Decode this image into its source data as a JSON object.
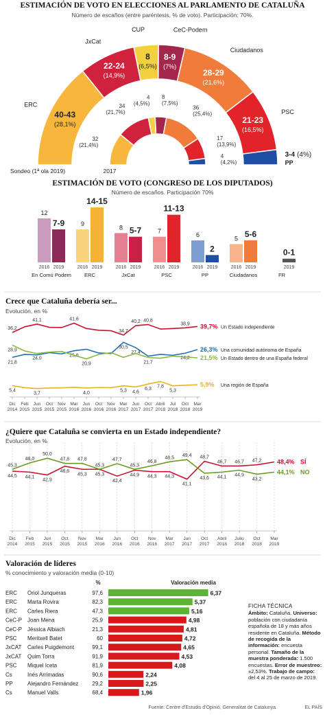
{
  "chart_data": [
    {
      "type": "donut",
      "title": "ESTIMACIÓN DE VOTO EN ELECCIONES AL PARLAMENTO DE CATALUÑA",
      "subtitle": "Número de escaños (entre paréntesis, % de voto). Participación: 70%.",
      "categories": [
        "ERC",
        "JxCat",
        "CUP",
        "CeC-Podem",
        "Ciudadanos",
        "PSC",
        "PP"
      ],
      "colors": [
        "#f6b73c",
        "#d0223d",
        "#f3d03e",
        "#a3264b",
        "#f07b3a",
        "#e2232a",
        "#1f4fa3"
      ],
      "series": [
        {
          "name": "Sondeo (1ª ola 2019)",
          "seats": [
            "40-43",
            "22-24",
            "8",
            "8-9",
            "28-29",
            "21-23",
            "3-4"
          ],
          "values": [
            28.1,
            14.9,
            6.5,
            7,
            21.6,
            16.5,
            4
          ],
          "value_labels": [
            "(28,1%)",
            "(14,9%)",
            "(6,5%)",
            "(7%)",
            "(21,6%)",
            "(16,5%)",
            "(4%)"
          ]
        },
        {
          "name": "2017",
          "seats": [
            "32",
            "34",
            "4",
            "8",
            "36",
            "17",
            "4"
          ],
          "values": [
            21.4,
            21.7,
            4.5,
            7.5,
            25.4,
            13.9,
            4.2
          ],
          "value_labels": [
            "(21,4%)",
            "(21,7%)",
            "(4,5%)",
            "(7,5%)",
            "(25,4%)",
            "(13,9%)",
            "(4,2%)"
          ]
        }
      ]
    },
    {
      "type": "bar",
      "title": "ESTIMACIÓN DE VOTO (CONGRESO DE LOS DIPUTADOS)",
      "subtitle": "Número de escaños. Participación 70%",
      "categories": [
        "En Comú Podem",
        "ERC",
        "JxCat",
        "PSC",
        "PP",
        "Ciudadanos",
        "FR"
      ],
      "ylim": [
        0,
        15
      ],
      "series": [
        {
          "name": "2016",
          "colors": [
            "#c99bbd",
            "#f8d27c",
            "#e47f92",
            "#f08d8d",
            "#7f9fd3",
            "#f8b58c",
            "#999999"
          ],
          "values": [
            12,
            9,
            8,
            7,
            6,
            5,
            null
          ]
        },
        {
          "name": "2019",
          "colors": [
            "#8e2a5a",
            "#f5b335",
            "#c92146",
            "#e2232a",
            "#1f4fa3",
            "#f07b3a",
            "#555555"
          ],
          "values": [
            [
              7,
              9
            ],
            [
              14,
              15
            ],
            [
              5,
              7
            ],
            [
              11,
              13
            ],
            [
              2,
              2
            ],
            [
              5,
              6
            ],
            [
              0,
              1
            ]
          ],
          "value_labels": [
            "7-9",
            "14-15",
            "5-7",
            "11-13",
            "2",
            "5-6",
            "0-1"
          ]
        }
      ]
    },
    {
      "type": "line",
      "title": "Crece que Cataluña debería ser...",
      "subtitle": "Evolución, en %",
      "categories": [
        [
          "Dic",
          "2014"
        ],
        [
          "Feb",
          "2015"
        ],
        [
          "Jun",
          "2015"
        ],
        [
          "Oct",
          "2015"
        ],
        [
          "Nov",
          "2015"
        ],
        [
          "Mar",
          "2016"
        ],
        [
          "Jun",
          "2016"
        ],
        [
          "Oct",
          "2016"
        ],
        [
          "Nov",
          "2016"
        ],
        [
          "Mar",
          "2017"
        ],
        [
          "Jun",
          "2017"
        ],
        [
          "Oct",
          "2017"
        ],
        [
          "Abril",
          "2018"
        ],
        [
          "Jul",
          "2018"
        ],
        [
          "Oct",
          "2018"
        ],
        [
          "Mar",
          "2019"
        ]
      ],
      "ylim": [
        0,
        45
      ],
      "grid": false,
      "series": [
        {
          "name": "Un Estado independiente",
          "color": "#c8102e",
          "values": [
            36.2,
            39.5,
            41.1,
            39.2,
            39.1,
            41.6,
            38.5,
            37.5,
            37.2,
            34.7,
            40.2,
            40.8,
            38.2,
            38.5,
            38.9,
            39.7
          ],
          "value_labels": [
            "36,2",
            null,
            "41,1",
            null,
            null,
            "41,6",
            null,
            null,
            null,
            "34,7",
            "40,2",
            "40,8",
            null,
            null,
            "38,9",
            "39,7%"
          ]
        },
        {
          "name": "Una comunidad autónoma de España",
          "color": "#1f6fb2",
          "values": [
            21.8,
            23.5,
            23.2,
            24.5,
            23.8,
            25.6,
            26.5,
            24.3,
            24.0,
            30.5,
            27.4,
            22.5,
            23.5,
            23.0,
            24.2,
            26.3
          ],
          "value_labels": [
            "21,8",
            null,
            null,
            null,
            null,
            "25,6",
            null,
            null,
            null,
            "30,5",
            "27,4",
            null,
            null,
            null,
            "24,2",
            "26,3%"
          ]
        },
        {
          "name": "Un Estado dentro de una España federal",
          "color": "#8cb83a",
          "values": [
            28.9,
            25.5,
            24.0,
            24.8,
            25.2,
            23.0,
            20.9,
            23.5,
            24.5,
            21.8,
            24.0,
            21.7,
            21.3,
            22.5,
            22.0,
            21.5
          ],
          "value_labels": [
            "28,9",
            null,
            "24,0",
            null,
            null,
            null,
            "20,9",
            null,
            null,
            null,
            null,
            "21,7",
            null,
            null,
            null,
            "21,5%"
          ]
        },
        {
          "name": "Una región de España",
          "color": "#e8b31e",
          "values": [
            5.4,
            4.2,
            3.7,
            4.0,
            4.1,
            4.4,
            4.0,
            4.3,
            4.2,
            5.3,
            4.6,
            6.3,
            7.8,
            5.3,
            5.6,
            5.9
          ],
          "value_labels": [
            "5,4",
            null,
            "3,7",
            null,
            null,
            null,
            "4,0",
            null,
            null,
            "5,3",
            "4,6",
            "6,3",
            "7,8",
            "5,3",
            null,
            "5,9%"
          ]
        }
      ]
    },
    {
      "type": "line",
      "title": "¿Quiere que Cataluña se convierta en un Estado independiente?",
      "subtitle": "Evolución, en %",
      "categories": [
        [
          "Dic",
          "2014"
        ],
        [
          "Feb",
          "2015"
        ],
        [
          "Jun",
          "2015"
        ],
        [
          "Oct",
          "2015"
        ],
        [
          "Nov",
          "2015"
        ],
        [
          "Mar",
          "2016"
        ],
        [
          "Jun",
          "2016"
        ],
        [
          "Oct",
          "2016"
        ],
        [
          "Nov",
          "2016"
        ],
        [
          "Mar",
          "2017"
        ],
        [
          "Jun",
          "2017"
        ],
        [
          "Oct",
          "2017"
        ],
        [
          "Abril",
          "2018"
        ],
        [
          "Julio",
          "2018"
        ],
        [
          "Oct",
          "2018"
        ],
        [
          "Mar",
          "2019"
        ]
      ],
      "ylim": [
        20,
        55
      ],
      "grid": true,
      "series": [
        {
          "name": "SÍ",
          "color": "#c8102e",
          "values": [
            44.5,
            44.1,
            42.9,
            46.6,
            45.3,
            45.3,
            42.4,
            44.9,
            44.3,
            44.3,
            41.1,
            48.7,
            46.7,
            46.7,
            47.2,
            48.4
          ],
          "value_labels": [
            "44,5",
            "44,1",
            "42,9",
            "46,6",
            "45,3",
            "45,3",
            "42,4",
            "44,9",
            "44,3",
            "44,3",
            "41,1",
            "48,7",
            "46,7",
            "46,7",
            "47,2",
            "48,4%"
          ]
        },
        {
          "name": "NO",
          "color": "#6a9a1f",
          "values": [
            45.3,
            48.0,
            50.0,
            47.8,
            47.8,
            45.3,
            47.7,
            45.3,
            46.8,
            48.5,
            49.4,
            43.6,
            44.1,
            44.9,
            43.2,
            44.1
          ],
          "value_labels": [
            "45,3",
            "48,0",
            "50,0",
            "47,8",
            "47,8",
            "45,3",
            "47,7",
            "45,3",
            "46,8",
            "48,5",
            "49,4",
            "43,6",
            "44,1",
            "44,9",
            "43,2",
            "44,1%"
          ]
        }
      ]
    },
    {
      "type": "hbar",
      "title": "Valoración de líderes",
      "subtitle": "% conocimiento y valoración media (0-10)",
      "knowledge_header": "%",
      "value_header": "Valoración media",
      "parties": [
        "ERC",
        "ERC",
        "ERC",
        "CeC-P",
        "CeC-P",
        "PSC",
        "JxCAT",
        "JxCAT",
        "PSC",
        "Cs",
        "PP",
        "Cs"
      ],
      "categories": [
        "Oriol Junqueras",
        "Marta Rovira",
        "Carles Riera",
        "Joan Mena",
        "Jéssica Albiach",
        "Meritxell Batet",
        "Carles Puigdemont",
        "Quim Torra",
        "Miquel Iceta",
        "Inés Arrimadas",
        "Alejandro Fernández",
        "Manuel Valls"
      ],
      "knowledge": [
        "97,6",
        "82,3",
        "47,3",
        "25,9",
        "21,3",
        "60",
        "99,1",
        "91,9",
        "81,9",
        "90,6",
        "29,2",
        "68,4"
      ],
      "values": [
        6.37,
        5.37,
        5.16,
        4.98,
        4.81,
        4.72,
        4.65,
        4.53,
        4.08,
        2.24,
        2.25,
        1.96
      ],
      "value_labels": [
        "6,37",
        "5,37",
        "5,16",
        "4,98",
        "4,81",
        "4,72",
        "4,65",
        "4,53",
        "4,08",
        "2,24",
        "2,25",
        "1,96"
      ],
      "colors": [
        "#5bb432",
        "#5bb432",
        "#5bb432",
        "#d7191c",
        "#d7191c",
        "#d7191c",
        "#d7191c",
        "#d7191c",
        "#d7191c",
        "#d7191c",
        "#d7191c",
        "#d7191c"
      ],
      "xlim": [
        0,
        7
      ]
    }
  ],
  "fact_sheet": {
    "title": "FICHA TÉCNICA",
    "items": [
      {
        "label": "Ámbito:",
        "text": "Cataluña."
      },
      {
        "label": "Universo:",
        "text": "población con ciudadanía española de 18 y más años residente en Cataluña."
      },
      {
        "label": "Método de recogida de la información:",
        "text": "encuesta personal."
      },
      {
        "label": "Tamaño de la muestra ponderada:",
        "text": "1.500 encuestas."
      },
      {
        "label": "Error de muestreo:",
        "text": "±2,53%."
      },
      {
        "label": "Trabajo de campo:",
        "text": "del 4 al 25 de marzo de 2019."
      }
    ]
  },
  "source": "Fuente: Centre d'Estudis d'Opinió, Generalitat de Catalunya.",
  "credit": "EL PAÍS"
}
